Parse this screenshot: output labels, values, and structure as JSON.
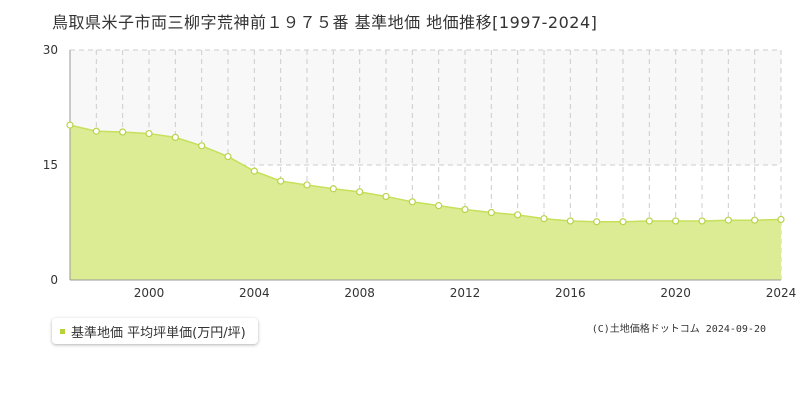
{
  "title": "鳥取県米子市両三柳字荒神前１９７５番 基準地価 地価推移[1997-2024]",
  "legend": {
    "label": "基準地価 平均坪単価(万円/坪)"
  },
  "copyright": "(C)土地価格ドットコム 2024-09-20",
  "colors": {
    "area_fill": "#dcec94",
    "line": "#c5e05a",
    "marker_fill": "#ffffff",
    "marker_stroke": "#b7d44a",
    "grid": "#cccccc",
    "upper_band": "#f8f8f8",
    "axis": "#999999",
    "legend_marker": "#b5d338"
  },
  "chart_data": {
    "type": "area",
    "title": "鳥取県米子市両三柳字荒神前１９７５番 基準地価 地価推移[1997-2024]",
    "xlim": [
      1997,
      2024
    ],
    "ylim": [
      0,
      30
    ],
    "y_ticks": [
      0,
      15,
      30
    ],
    "x_ticks": [
      2000,
      2004,
      2008,
      2012,
      2016,
      2020,
      2024
    ],
    "grid": true,
    "legend_position": "bottom-left",
    "series": [
      {
        "name": "基準地価 平均坪単価(万円/坪)",
        "x": [
          1997,
          1998,
          1999,
          2000,
          2001,
          2002,
          2003,
          2004,
          2005,
          2006,
          2007,
          2008,
          2009,
          2010,
          2011,
          2012,
          2013,
          2014,
          2015,
          2016,
          2017,
          2018,
          2019,
          2020,
          2021,
          2022,
          2023,
          2024
        ],
        "values": [
          20.2,
          19.4,
          19.3,
          19.1,
          18.6,
          17.5,
          16.1,
          14.2,
          12.9,
          12.4,
          11.9,
          11.5,
          10.9,
          10.2,
          9.7,
          9.2,
          8.8,
          8.5,
          8.0,
          7.7,
          7.6,
          7.6,
          7.7,
          7.7,
          7.7,
          7.8,
          7.8,
          7.9
        ]
      }
    ]
  }
}
